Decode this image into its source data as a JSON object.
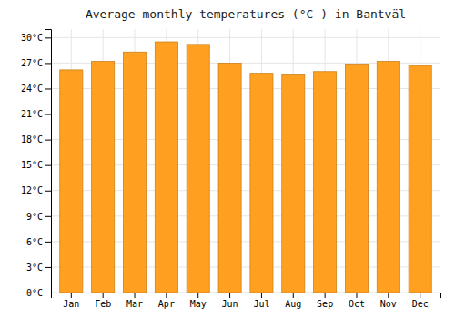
{
  "chart_data": {
    "type": "bar",
    "title": "Average monthly temperatures (°C ) in Bantväl",
    "categories": [
      "Jan",
      "Feb",
      "Mar",
      "Apr",
      "May",
      "Jun",
      "Jul",
      "Aug",
      "Sep",
      "Oct",
      "Nov",
      "Dec"
    ],
    "values": [
      26.2,
      27.2,
      28.3,
      29.5,
      29.2,
      27.0,
      25.8,
      25.7,
      26.0,
      26.9,
      27.2,
      26.7
    ],
    "color": "#FFA020",
    "ylim": [
      0,
      31
    ],
    "yticks": [
      {
        "value": 0,
        "label": "0°C"
      },
      {
        "value": 3,
        "label": "3°C"
      },
      {
        "value": 6,
        "label": "6°C"
      },
      {
        "value": 9,
        "label": "9°C"
      },
      {
        "value": 12,
        "label": "12°C"
      },
      {
        "value": 15,
        "label": "15°C"
      },
      {
        "value": 18,
        "label": "18°C"
      },
      {
        "value": 21,
        "label": "21°C"
      },
      {
        "value": 24,
        "label": "24°C"
      },
      {
        "value": 27,
        "label": "27°C"
      },
      {
        "value": 30,
        "label": "30°C"
      }
    ],
    "grid": true
  }
}
